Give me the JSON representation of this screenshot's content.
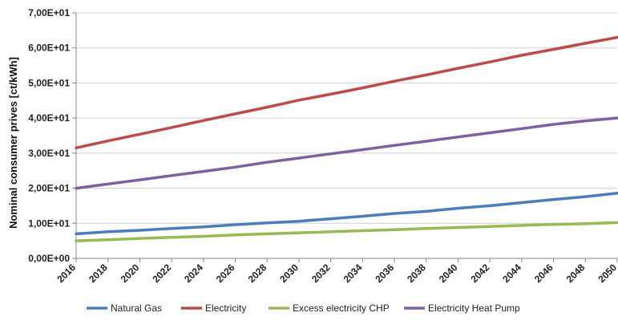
{
  "chart_data": {
    "type": "line",
    "title": "",
    "xlabel": "",
    "ylabel": "Nominal consumer prives [ct/kWh]",
    "x": [
      2016,
      2018,
      2020,
      2022,
      2024,
      2026,
      2028,
      2030,
      2032,
      2034,
      2036,
      2038,
      2040,
      2042,
      2044,
      2046,
      2048,
      2050
    ],
    "xticks": [
      "2016",
      "2018",
      "2020",
      "2022",
      "2024",
      "2026",
      "2028",
      "2030",
      "2032",
      "2034",
      "2036",
      "2038",
      "2040",
      "2042",
      "2044",
      "2046",
      "2048",
      "2050"
    ],
    "ylim": [
      0,
      70
    ],
    "yticks": [
      0,
      10,
      20,
      30,
      40,
      50,
      60,
      70
    ],
    "ytick_labels": [
      "0,00E+00",
      "1,00E+01",
      "2,00E+01",
      "3,00E+01",
      "4,00E+01",
      "5,00E+01",
      "6,00E+01",
      "7,00E+01"
    ],
    "grid": true,
    "legend_position": "bottom",
    "series": [
      {
        "name": "Natural Gas",
        "color": "#4a7ebb",
        "values": [
          7.0,
          7.6,
          8.0,
          8.5,
          9.0,
          9.6,
          10.1,
          10.6,
          11.3,
          12.0,
          12.8,
          13.4,
          14.3,
          15.0,
          15.9,
          16.8,
          17.6,
          18.6
        ]
      },
      {
        "name": "Electricity",
        "color": "#be4b48",
        "values": [
          31.5,
          33.5,
          35.4,
          37.3,
          39.3,
          41.2,
          43.1,
          45.1,
          46.8,
          48.6,
          50.5,
          52.3,
          54.2,
          56.0,
          57.9,
          59.6,
          61.3,
          63.0
        ]
      },
      {
        "name": "Excess electricity CHP",
        "color": "#98b954",
        "values": [
          5.0,
          5.3,
          5.7,
          6.0,
          6.3,
          6.7,
          7.0,
          7.3,
          7.6,
          7.9,
          8.2,
          8.5,
          8.8,
          9.1,
          9.4,
          9.7,
          9.9,
          10.2
        ]
      },
      {
        "name": "Electricity Heat Pump",
        "color": "#7d60a0",
        "values": [
          20.0,
          21.2,
          22.4,
          23.6,
          24.8,
          26.0,
          27.4,
          28.6,
          29.8,
          31.0,
          32.2,
          33.4,
          34.6,
          35.8,
          37.0,
          38.2,
          39.2,
          40.0
        ]
      }
    ]
  }
}
